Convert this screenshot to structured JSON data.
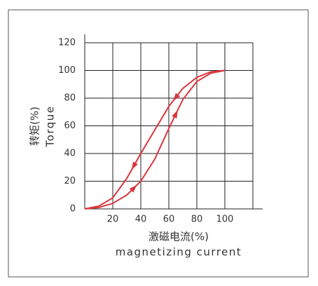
{
  "chart_data": {
    "type": "line",
    "xlabel": "激磁电流(%)",
    "xlabel2": "magnetizing current",
    "ylabel": "转矩(%)",
    "ylabel2": "Torque",
    "x": [
      0,
      10,
      20,
      30,
      40,
      50,
      60,
      70,
      80,
      90,
      100
    ],
    "series": [
      {
        "color": "#d9363e",
        "values": [
          0,
          2,
          8,
          22,
          40,
          57,
          74,
          87,
          95,
          99,
          100
        ]
      },
      {
        "color": "#d9363e",
        "values": [
          0,
          1,
          4,
          10,
          20,
          36,
          58,
          79,
          92,
          98,
          100
        ]
      }
    ],
    "xlim": [
      0,
      120
    ],
    "ylim": [
      0,
      120
    ],
    "xticks": [
      20,
      40,
      60,
      80,
      100
    ],
    "yticks": [
      0,
      20,
      40,
      60,
      80,
      100,
      120
    ],
    "grid": true
  }
}
